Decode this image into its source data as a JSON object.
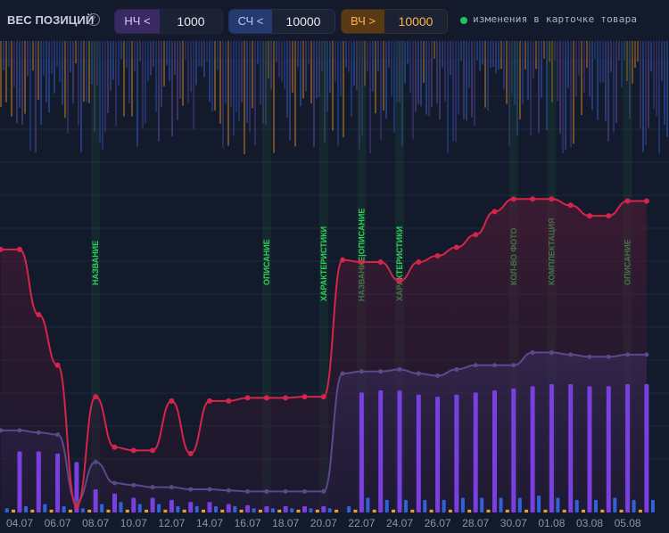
{
  "header": {
    "title": "ВЕС ПОЗИЦИЙ",
    "help_icon": "question-circle-icon",
    "filters": [
      {
        "label": "НЧ <",
        "value": "1000",
        "color": "#8e6cf0"
      },
      {
        "label": "СЧ <",
        "value": "10000",
        "color": "#3a6ad8"
      },
      {
        "label": "ВЧ >",
        "value": "10000",
        "color": "#f0a030"
      }
    ],
    "legend": {
      "text": "изменения в карточке товара",
      "color": "#21c45d"
    }
  },
  "chart_data": {
    "type": "line",
    "x": [
      "03.07",
      "04.07",
      "05.07",
      "06.07",
      "07.07",
      "08.07",
      "09.07",
      "10.07",
      "11.07",
      "12.07",
      "13.07",
      "14.07",
      "15.07",
      "16.07",
      "17.07",
      "18.07",
      "19.07",
      "20.07",
      "21.07",
      "22.07",
      "23.07",
      "24.07",
      "25.07",
      "26.07",
      "27.07",
      "28.07",
      "29.07",
      "30.07",
      "31.07",
      "01.08",
      "02.08",
      "03.08",
      "04.08",
      "05.08",
      "06.08"
    ],
    "xticks": [
      "04.07",
      "06.07",
      "08.07",
      "10.07",
      "12.07",
      "14.07",
      "16.07",
      "18.07",
      "20.07",
      "22.07",
      "24.07",
      "26.07",
      "28.07",
      "30.07",
      "01.08",
      "03.08",
      "05.08"
    ],
    "series": [
      {
        "color": "#d6244a",
        "values": [
          12.5,
          12.5,
          9.4,
          7.0,
          0.3,
          5.5,
          3.1,
          2.95,
          2.95,
          5.3,
          2.8,
          5.3,
          5.3,
          5.45,
          5.45,
          5.45,
          5.5,
          5.5,
          12.0,
          11.9,
          11.9,
          11.0,
          11.9,
          12.2,
          12.6,
          13.2,
          14.3,
          14.9,
          14.9,
          14.9,
          14.6,
          14.1,
          14.1,
          14.8,
          14.8
        ]
      },
      {
        "color": "#5a4a8a",
        "values": [
          3.9,
          3.9,
          3.8,
          3.7,
          0.5,
          2.4,
          1.4,
          1.3,
          1.2,
          1.2,
          1.1,
          1.1,
          1.05,
          1.0,
          1.0,
          1.0,
          1.0,
          1.0,
          6.6,
          6.7,
          6.7,
          6.8,
          6.6,
          6.5,
          6.8,
          7.0,
          7.0,
          7.0,
          7.6,
          7.6,
          7.5,
          7.4,
          7.4,
          7.5,
          7.5
        ]
      }
    ],
    "bars_low": [
      0,
      2.9,
      2.9,
      2.8,
      2.4,
      1.1,
      0.9,
      0.7,
      0.7,
      0.6,
      0.5,
      0.5,
      0.4,
      0.35,
      0.3,
      0.3,
      0.3,
      0.3,
      0,
      5.7,
      5.8,
      5.8,
      5.6,
      5.5,
      5.6,
      5.7,
      5.8,
      5.9,
      6.0,
      6.1,
      6.1,
      6.0,
      6.0,
      6.1,
      6.1
    ],
    "bars_mid": [
      0.2,
      0.3,
      0.4,
      0.3,
      0.2,
      0.4,
      0.5,
      0.4,
      0.4,
      0.3,
      0.3,
      0.3,
      0.3,
      0.2,
      0.2,
      0.2,
      0.2,
      0.2,
      0.3,
      0.7,
      0.6,
      0.6,
      0.6,
      0.6,
      0.7,
      0.7,
      0.7,
      0.7,
      0.8,
      0.7,
      0.6,
      0.6,
      0.7,
      0.6,
      0.6
    ],
    "bars_high": [
      0.05,
      0.05,
      0.05,
      0.05,
      0.05,
      0.05,
      0.05,
      0.05,
      0.05,
      0.05,
      0.05,
      0.05,
      0.05,
      0.05,
      0.05,
      0.05,
      0.05,
      0.05,
      0.05,
      0.05,
      0.05,
      0.05,
      0.05,
      0.05,
      0.05,
      0.05,
      0.05,
      0.05,
      0.05,
      0.05,
      0.05,
      0.05,
      0.05,
      0.05,
      0.05
    ],
    "annotations": [
      {
        "date": "08.07",
        "text": "НАЗВАНИЕ"
      },
      {
        "date": "17.07",
        "text": "ОПИСАНИЕ"
      },
      {
        "date": "20.07",
        "text": "ХАРАКТЕРИСТИКИ"
      },
      {
        "date": "22.07",
        "text": "НАЗВАНИЕ|ОПИСАНИЕ"
      },
      {
        "date": "24.07",
        "text": "ХАРАКТЕРИСТИКИ"
      },
      {
        "date": "30.07",
        "text": "КОЛ-ВО ФОТО"
      },
      {
        "date": "01.08",
        "text": "КОМПЛЕКТАЦИЯ"
      },
      {
        "date": "05.08",
        "text": "ОПИСАНИЕ"
      }
    ],
    "ylim": [
      0,
      18
    ],
    "grid": true
  }
}
